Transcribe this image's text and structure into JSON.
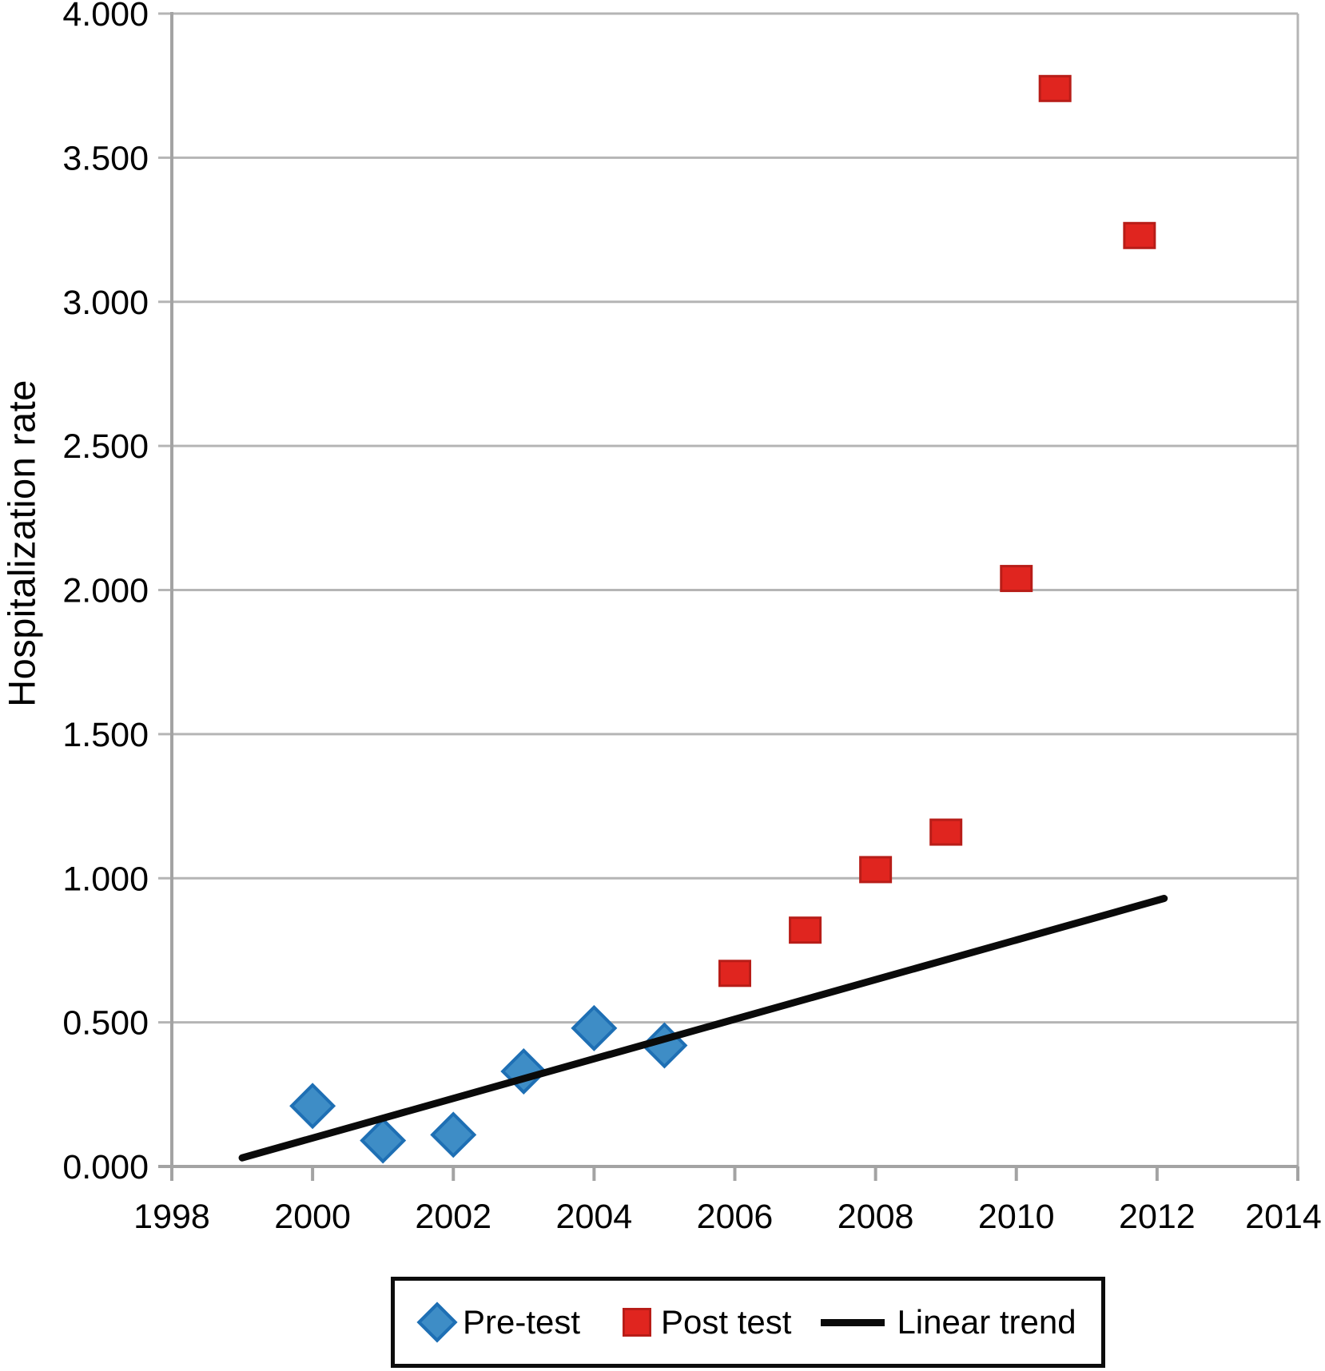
{
  "chart_data": {
    "type": "scatter",
    "title": "",
    "xlabel": "",
    "ylabel": "Hospitalization rate",
    "xlim": [
      1998,
      2014
    ],
    "ylim": [
      0,
      4
    ],
    "grid": true,
    "legend_position": "bottom",
    "x_ticks": [
      1998,
      2000,
      2002,
      2004,
      2006,
      2008,
      2010,
      2012,
      2014
    ],
    "x_tick_labels": [
      "1998",
      "2000",
      "2002",
      "2004",
      "2006",
      "2008",
      "2010",
      "2012",
      "2014"
    ],
    "y_ticks": [
      0,
      0.5,
      1,
      1.5,
      2,
      2.5,
      3,
      3.5,
      4
    ],
    "y_tick_labels": [
      "0.000",
      "0.500",
      "1.000",
      "1.500",
      "2.000",
      "2.500",
      "3.000",
      "3.500",
      "4.000"
    ],
    "colors": {
      "pre_test_fill": "#3e8dc6",
      "pre_test_stroke": "#1e6fb4",
      "post_test_fill": "#e0251f",
      "post_test_stroke": "#b81d18",
      "trend_line": "#0a0a0a",
      "gridline": "#b5b5b5",
      "axis": "#a3a3a3"
    },
    "series": [
      {
        "name": "Pre-test",
        "type": "scatter",
        "marker": "diamond",
        "fill": "#3e8dc6",
        "stroke": "#1e6fb4",
        "points": [
          [
            2000,
            0.21
          ],
          [
            2001,
            0.09
          ],
          [
            2002,
            0.11
          ],
          [
            2003,
            0.33
          ],
          [
            2004,
            0.48
          ],
          [
            2005,
            0.42
          ]
        ]
      },
      {
        "name": "Post test",
        "type": "scatter",
        "marker": "square",
        "fill": "#e0251f",
        "stroke": "#b81d18",
        "points": [
          [
            2006,
            0.67
          ],
          [
            2007,
            0.82
          ],
          [
            2008,
            1.03
          ],
          [
            2009,
            1.16
          ],
          [
            2010,
            2.04
          ],
          [
            2010.55,
            3.74
          ],
          [
            2011.75,
            3.23
          ]
        ]
      },
      {
        "name": "Linear trend",
        "type": "line",
        "marker": "line",
        "color": "#0a0a0a",
        "points": [
          [
            1999,
            0.03
          ],
          [
            2012.1,
            0.93
          ]
        ]
      }
    ]
  }
}
